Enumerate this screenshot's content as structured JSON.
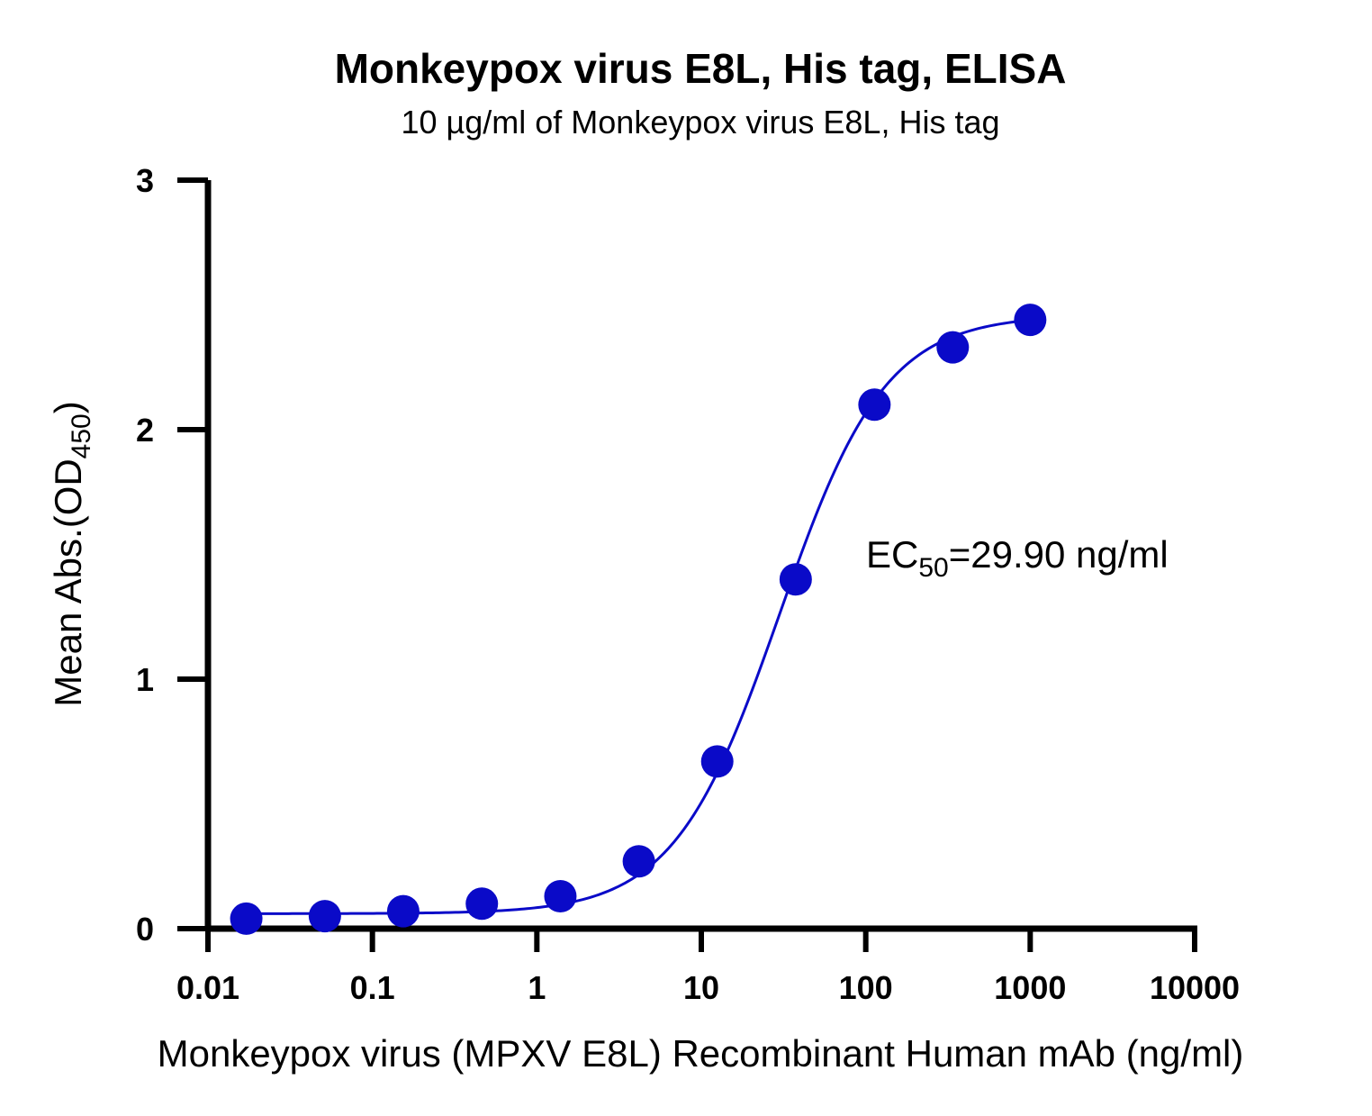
{
  "chart_data": {
    "type": "scatter",
    "title": "Monkeypox virus E8L, His tag, ELISA",
    "subtitle": "10 µg/ml of Monkeypox virus E8L, His tag",
    "xlabel": "Monkeypox virus (MPXV E8L) Recombinant Human mAb (ng/ml)",
    "ylabel": {
      "main": "Mean Abs.(OD",
      "sub": "450",
      "end": ")"
    },
    "x_scale": "log",
    "xlim": [
      0.01,
      10000
    ],
    "ylim": [
      0,
      3
    ],
    "x_ticks": [
      0.01,
      0.1,
      1,
      10,
      100,
      1000,
      10000
    ],
    "x_tick_labels": [
      "0.01",
      "0.1",
      "1",
      "10",
      "100",
      "1000",
      "10000"
    ],
    "y_ticks": [
      0,
      1,
      2,
      3
    ],
    "y_tick_labels": [
      "0",
      "1",
      "2",
      "3"
    ],
    "series": [
      {
        "color": "#0a0ac8",
        "x": [
          0.0171,
          0.0514,
          0.154,
          0.463,
          1.39,
          4.17,
          12.5,
          37.5,
          113,
          338,
          1000
        ],
        "y": [
          0.04,
          0.05,
          0.07,
          0.1,
          0.13,
          0.27,
          0.67,
          1.4,
          2.1,
          2.33,
          2.44
        ]
      }
    ],
    "fit": {
      "type": "4PL",
      "bottom": 0.06,
      "top": 2.46,
      "ec50": 29.9,
      "hill": 1.35,
      "color": "#0a0ac8"
    },
    "annotation": {
      "prefix": "EC",
      "sub": "50",
      "suffix": "=29.90 ng/ml"
    },
    "grid": false,
    "legend": "none"
  }
}
